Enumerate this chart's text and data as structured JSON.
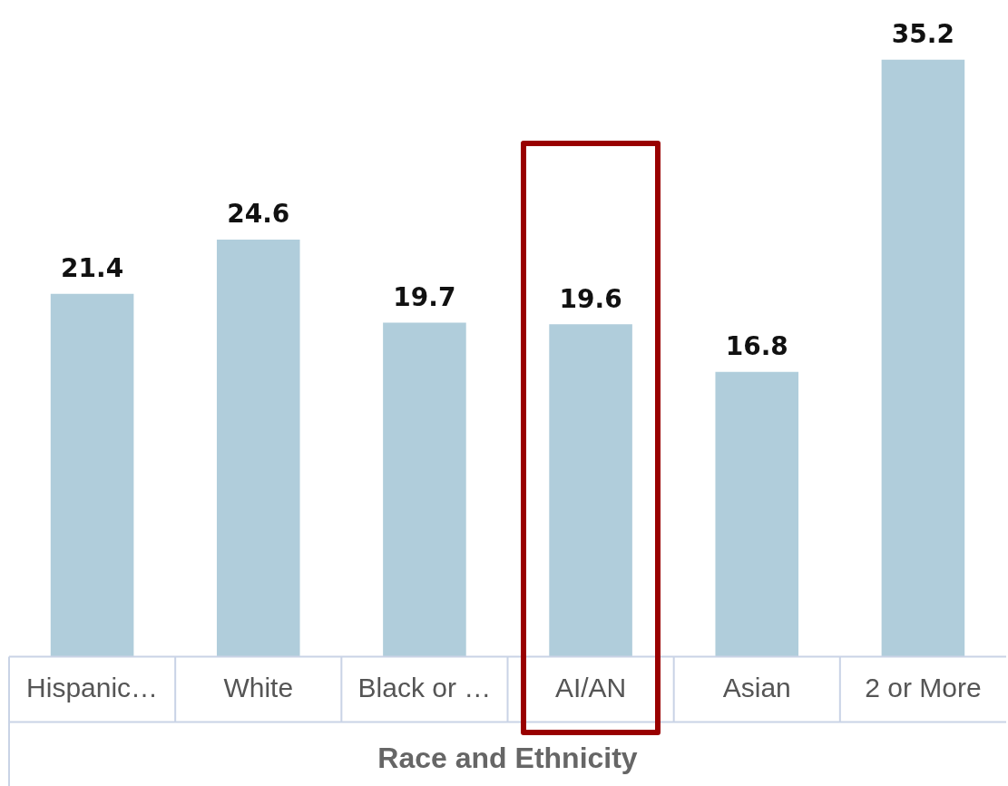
{
  "chart_data": {
    "type": "bar",
    "xlabel": "Race and Ethnicity",
    "categories": [
      "Hispanic…",
      "White",
      "Black or …",
      "AI/AN",
      "Asian",
      "2 or More"
    ],
    "values": [
      21.4,
      24.6,
      19.7,
      19.6,
      16.8,
      35.2
    ],
    "color": "#b0cddb",
    "data_labels": true
  }
}
